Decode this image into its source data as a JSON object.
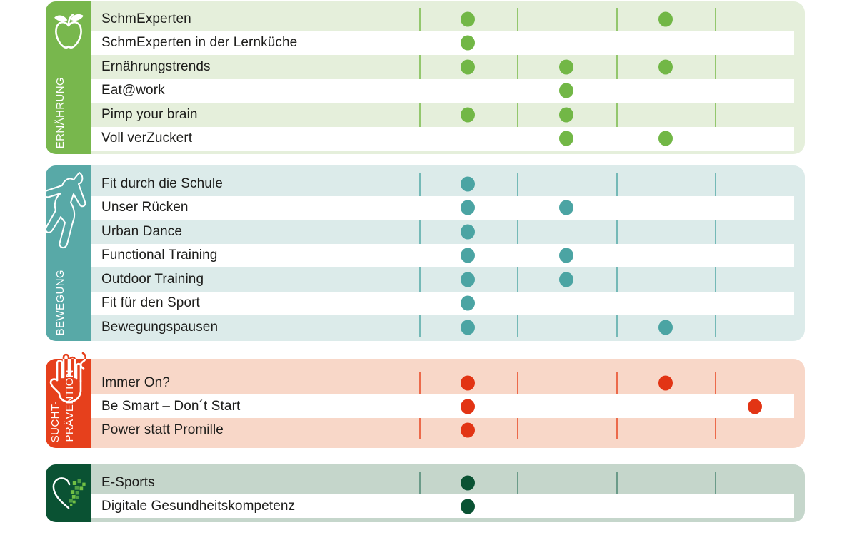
{
  "page": {
    "background": "#ffffff",
    "text_color": "#1d1d1b",
    "matrix_columns": 4
  },
  "sections": [
    {
      "id": "ernaehrung",
      "label": "ERNÄHRUNG",
      "label_lines": [
        "ERNÄHRUNG"
      ],
      "icon": "apple-icon",
      "colors": {
        "accent": "#78b74d",
        "tint": "#e5efdb",
        "dot": "#72b746",
        "line": "#93c76d"
      },
      "rows": [
        {
          "label": "SchmExperten",
          "dots": [
            1,
            3
          ]
        },
        {
          "label": "SchmExperten in der Lernküche",
          "dots": [
            1
          ]
        },
        {
          "label": "Ernährungstrends",
          "dots": [
            1,
            2,
            3
          ]
        },
        {
          "label": "Eat@work",
          "dots": [
            2
          ]
        },
        {
          "label": "Pimp your brain",
          "dots": [
            1,
            2
          ]
        },
        {
          "label": "Voll verZuckert",
          "dots": [
            2,
            3
          ]
        }
      ]
    },
    {
      "id": "bewegung",
      "label": "BEWEGUNG",
      "label_lines": [
        "BEWEGUNG"
      ],
      "icon": "jumping-person-icon",
      "colors": {
        "accent": "#58a9a7",
        "tint": "#dcebea",
        "dot": "#4ba4a3",
        "line": "#74b9b7"
      },
      "rows": [
        {
          "label": "Fit durch die Schule",
          "dots": [
            1
          ]
        },
        {
          "label": "Unser Rücken",
          "dots": [
            1,
            2
          ]
        },
        {
          "label": "Urban Dance",
          "dots": [
            1
          ]
        },
        {
          "label": "Functional Training",
          "dots": [
            1,
            2
          ]
        },
        {
          "label": "Outdoor Training",
          "dots": [
            1,
            2
          ]
        },
        {
          "label": "Fit für den Sport",
          "dots": [
            1
          ]
        },
        {
          "label": "Bewegungspausen",
          "dots": [
            1,
            3
          ]
        }
      ]
    },
    {
      "id": "suchtpraevention",
      "label": "SUCHT-PRÄVENTION",
      "label_lines": [
        "SUCHT-",
        "PRÄVENTION"
      ],
      "icon": "stop-hand-icon",
      "colors": {
        "accent": "#e6401c",
        "tint": "#f8d7c8",
        "dot": "#e23414",
        "line": "#ec6a4b"
      },
      "rows": [
        {
          "label": "Immer On?",
          "dots": [
            1,
            3
          ]
        },
        {
          "label": "Be Smart – Don´t Start",
          "dots": [
            1,
            4
          ]
        },
        {
          "label": "Power statt Promille",
          "dots": [
            1
          ]
        }
      ]
    },
    {
      "id": "digitale-gesundheit",
      "label": "",
      "label_lines": [],
      "icon": "pixel-heart-icon",
      "colors": {
        "accent": "#0a5233",
        "tint": "#c5d6cb",
        "dot": "#0a5233",
        "line": "#6b9b89"
      },
      "rows": [
        {
          "label": "E-Sports",
          "dots": [
            1
          ]
        },
        {
          "label": "Digitale Gesundheitskompetenz",
          "dots": [
            1
          ]
        }
      ]
    }
  ]
}
